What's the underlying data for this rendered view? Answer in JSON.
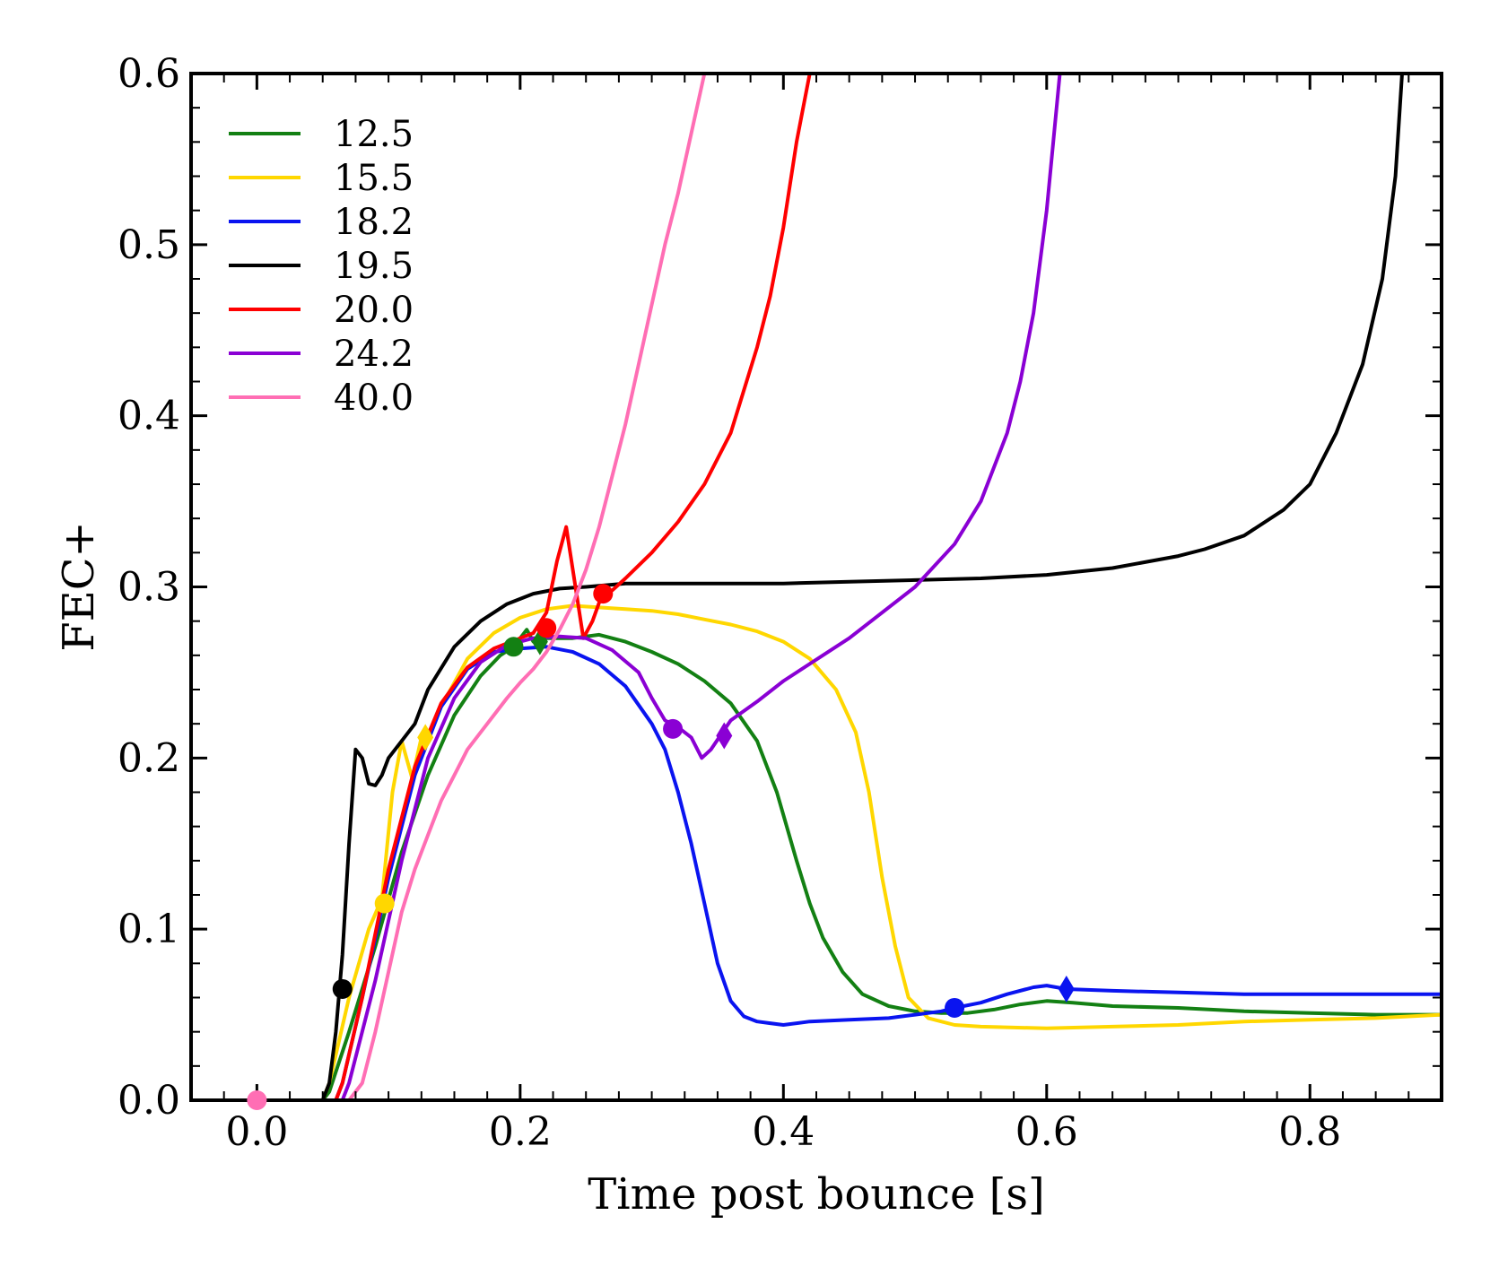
{
  "chart_data": {
    "type": "line",
    "xlabel": "Time post bounce [s]",
    "ylabel": "FEC+",
    "xlim": [
      -0.05,
      0.9
    ],
    "ylim": [
      0.0,
      0.6
    ],
    "grid": false,
    "legend_position": "top-left",
    "x_ticks": [
      0.0,
      0.2,
      0.4,
      0.6,
      0.8
    ],
    "x_tick_labels": [
      "0.0",
      "0.2",
      "0.4",
      "0.6",
      "0.8"
    ],
    "y_ticks": [
      0.0,
      0.1,
      0.2,
      0.3,
      0.4,
      0.5,
      0.6
    ],
    "y_tick_labels": [
      "0.0",
      "0.1",
      "0.2",
      "0.3",
      "0.4",
      "0.5",
      "0.6"
    ],
    "series": [
      {
        "name": "12.5",
        "color": "#138013",
        "x": [
          0.0,
          0.05,
          0.055,
          0.07,
          0.09,
          0.11,
          0.13,
          0.15,
          0.17,
          0.185,
          0.195,
          0.205,
          0.21,
          0.22,
          0.24,
          0.26,
          0.28,
          0.3,
          0.32,
          0.34,
          0.36,
          0.38,
          0.395,
          0.41,
          0.42,
          0.43,
          0.445,
          0.46,
          0.48,
          0.5,
          0.52,
          0.54,
          0.56,
          0.58,
          0.6,
          0.62,
          0.65,
          0.7,
          0.75,
          0.8,
          0.85,
          0.9
        ],
        "y": [
          0.0,
          0.0,
          0.005,
          0.04,
          0.09,
          0.145,
          0.19,
          0.225,
          0.248,
          0.26,
          0.265,
          0.275,
          0.268,
          0.27,
          0.27,
          0.272,
          0.268,
          0.262,
          0.255,
          0.245,
          0.232,
          0.21,
          0.18,
          0.14,
          0.115,
          0.095,
          0.075,
          0.062,
          0.055,
          0.052,
          0.051,
          0.051,
          0.053,
          0.056,
          0.058,
          0.057,
          0.055,
          0.054,
          0.052,
          0.051,
          0.05,
          0.05
        ],
        "markers": [
          {
            "shape": "circle",
            "x": 0.195,
            "y": 0.265
          },
          {
            "shape": "diamond",
            "x": 0.215,
            "y": 0.268
          }
        ]
      },
      {
        "name": "15.5",
        "color": "#ffd700",
        "x": [
          0.0,
          0.05,
          0.055,
          0.07,
          0.085,
          0.095,
          0.103,
          0.11,
          0.118,
          0.125,
          0.13,
          0.14,
          0.16,
          0.18,
          0.2,
          0.22,
          0.24,
          0.26,
          0.28,
          0.3,
          0.32,
          0.34,
          0.36,
          0.38,
          0.4,
          0.42,
          0.44,
          0.455,
          0.465,
          0.475,
          0.485,
          0.495,
          0.51,
          0.53,
          0.55,
          0.6,
          0.65,
          0.7,
          0.75,
          0.8,
          0.85,
          0.9
        ],
        "y": [
          0.0,
          0.0,
          0.01,
          0.06,
          0.1,
          0.118,
          0.18,
          0.21,
          0.188,
          0.212,
          0.212,
          0.23,
          0.258,
          0.273,
          0.282,
          0.287,
          0.289,
          0.288,
          0.287,
          0.286,
          0.284,
          0.281,
          0.278,
          0.274,
          0.268,
          0.258,
          0.24,
          0.215,
          0.18,
          0.13,
          0.09,
          0.06,
          0.048,
          0.044,
          0.043,
          0.042,
          0.043,
          0.044,
          0.046,
          0.047,
          0.048,
          0.05
        ],
        "markers": [
          {
            "shape": "circle",
            "x": 0.097,
            "y": 0.115
          },
          {
            "shape": "diamond",
            "x": 0.128,
            "y": 0.212
          }
        ]
      },
      {
        "name": "18.2",
        "color": "#0a14f0",
        "x": [
          0.0,
          0.06,
          0.065,
          0.08,
          0.1,
          0.12,
          0.14,
          0.16,
          0.18,
          0.2,
          0.22,
          0.24,
          0.26,
          0.28,
          0.3,
          0.31,
          0.32,
          0.33,
          0.34,
          0.35,
          0.36,
          0.37,
          0.38,
          0.39,
          0.4,
          0.42,
          0.45,
          0.48,
          0.5,
          0.52,
          0.53,
          0.55,
          0.57,
          0.59,
          0.6,
          0.615,
          0.65,
          0.7,
          0.75,
          0.8,
          0.85,
          0.9
        ],
        "y": [
          0.0,
          0.0,
          0.01,
          0.06,
          0.13,
          0.19,
          0.23,
          0.252,
          0.262,
          0.264,
          0.265,
          0.262,
          0.255,
          0.242,
          0.22,
          0.205,
          0.18,
          0.15,
          0.115,
          0.08,
          0.058,
          0.049,
          0.046,
          0.045,
          0.044,
          0.046,
          0.047,
          0.048,
          0.05,
          0.052,
          0.054,
          0.057,
          0.062,
          0.066,
          0.067,
          0.065,
          0.064,
          0.063,
          0.062,
          0.062,
          0.062,
          0.062
        ],
        "markers": [
          {
            "shape": "circle",
            "x": 0.53,
            "y": 0.054
          },
          {
            "shape": "diamond",
            "x": 0.615,
            "y": 0.065
          }
        ]
      },
      {
        "name": "19.5",
        "color": "#000000",
        "x": [
          0.0,
          0.05,
          0.055,
          0.06,
          0.065,
          0.07,
          0.075,
          0.08,
          0.085,
          0.09,
          0.095,
          0.1,
          0.11,
          0.12,
          0.13,
          0.15,
          0.17,
          0.19,
          0.21,
          0.23,
          0.25,
          0.28,
          0.3,
          0.35,
          0.4,
          0.45,
          0.5,
          0.55,
          0.6,
          0.65,
          0.7,
          0.72,
          0.75,
          0.78,
          0.8,
          0.82,
          0.84,
          0.855,
          0.865,
          0.87
        ],
        "y": [
          0.0,
          0.0,
          0.01,
          0.04,
          0.085,
          0.15,
          0.205,
          0.2,
          0.185,
          0.184,
          0.19,
          0.2,
          0.21,
          0.22,
          0.24,
          0.265,
          0.28,
          0.29,
          0.296,
          0.299,
          0.3,
          0.302,
          0.302,
          0.302,
          0.302,
          0.303,
          0.304,
          0.305,
          0.307,
          0.311,
          0.318,
          0.322,
          0.33,
          0.345,
          0.36,
          0.39,
          0.43,
          0.48,
          0.54,
          0.6
        ],
        "markers": [
          {
            "shape": "circle",
            "x": 0.065,
            "y": 0.065
          }
        ]
      },
      {
        "name": "20.0",
        "color": "#ff0000",
        "x": [
          0.0,
          0.06,
          0.065,
          0.08,
          0.1,
          0.12,
          0.14,
          0.16,
          0.18,
          0.2,
          0.21,
          0.22,
          0.228,
          0.235,
          0.242,
          0.248,
          0.255,
          0.262,
          0.27,
          0.28,
          0.3,
          0.32,
          0.34,
          0.36,
          0.38,
          0.39,
          0.4,
          0.41,
          0.415,
          0.42
        ],
        "y": [
          0.0,
          0.0,
          0.01,
          0.06,
          0.135,
          0.195,
          0.232,
          0.253,
          0.264,
          0.27,
          0.273,
          0.285,
          0.315,
          0.335,
          0.3,
          0.27,
          0.28,
          0.295,
          0.298,
          0.305,
          0.32,
          0.338,
          0.36,
          0.39,
          0.44,
          0.47,
          0.51,
          0.56,
          0.58,
          0.6
        ],
        "markers": [
          {
            "shape": "circle",
            "x": 0.22,
            "y": 0.276
          },
          {
            "shape": "circle",
            "x": 0.263,
            "y": 0.296
          }
        ]
      },
      {
        "name": "24.2",
        "color": "#8a00d4",
        "x": [
          0.0,
          0.065,
          0.07,
          0.09,
          0.11,
          0.13,
          0.15,
          0.17,
          0.19,
          0.21,
          0.23,
          0.25,
          0.27,
          0.29,
          0.3,
          0.31,
          0.32,
          0.33,
          0.338,
          0.345,
          0.352,
          0.36,
          0.38,
          0.4,
          0.45,
          0.5,
          0.53,
          0.55,
          0.57,
          0.58,
          0.59,
          0.6,
          0.61
        ],
        "y": [
          0.0,
          0.0,
          0.01,
          0.07,
          0.14,
          0.2,
          0.235,
          0.256,
          0.266,
          0.27,
          0.271,
          0.27,
          0.263,
          0.25,
          0.235,
          0.222,
          0.218,
          0.212,
          0.2,
          0.205,
          0.213,
          0.222,
          0.233,
          0.245,
          0.27,
          0.3,
          0.325,
          0.35,
          0.39,
          0.42,
          0.46,
          0.52,
          0.6
        ],
        "markers": [
          {
            "shape": "circle",
            "x": 0.316,
            "y": 0.217
          },
          {
            "shape": "diamond",
            "x": 0.355,
            "y": 0.213
          }
        ]
      },
      {
        "name": "40.0",
        "color": "#ff6eb4",
        "x": [
          0.0,
          0.07,
          0.08,
          0.09,
          0.1,
          0.11,
          0.12,
          0.13,
          0.14,
          0.15,
          0.16,
          0.17,
          0.18,
          0.19,
          0.2,
          0.21,
          0.22,
          0.23,
          0.24,
          0.25,
          0.26,
          0.27,
          0.28,
          0.29,
          0.3,
          0.31,
          0.32,
          0.33,
          0.34
        ],
        "y": [
          0.0,
          0.0,
          0.01,
          0.04,
          0.075,
          0.11,
          0.135,
          0.155,
          0.175,
          0.19,
          0.205,
          0.215,
          0.225,
          0.235,
          0.244,
          0.252,
          0.262,
          0.275,
          0.29,
          0.31,
          0.335,
          0.365,
          0.395,
          0.43,
          0.465,
          0.5,
          0.53,
          0.565,
          0.6
        ],
        "markers": [
          {
            "shape": "circle",
            "x": 0.0,
            "y": 0.0
          }
        ]
      }
    ]
  }
}
